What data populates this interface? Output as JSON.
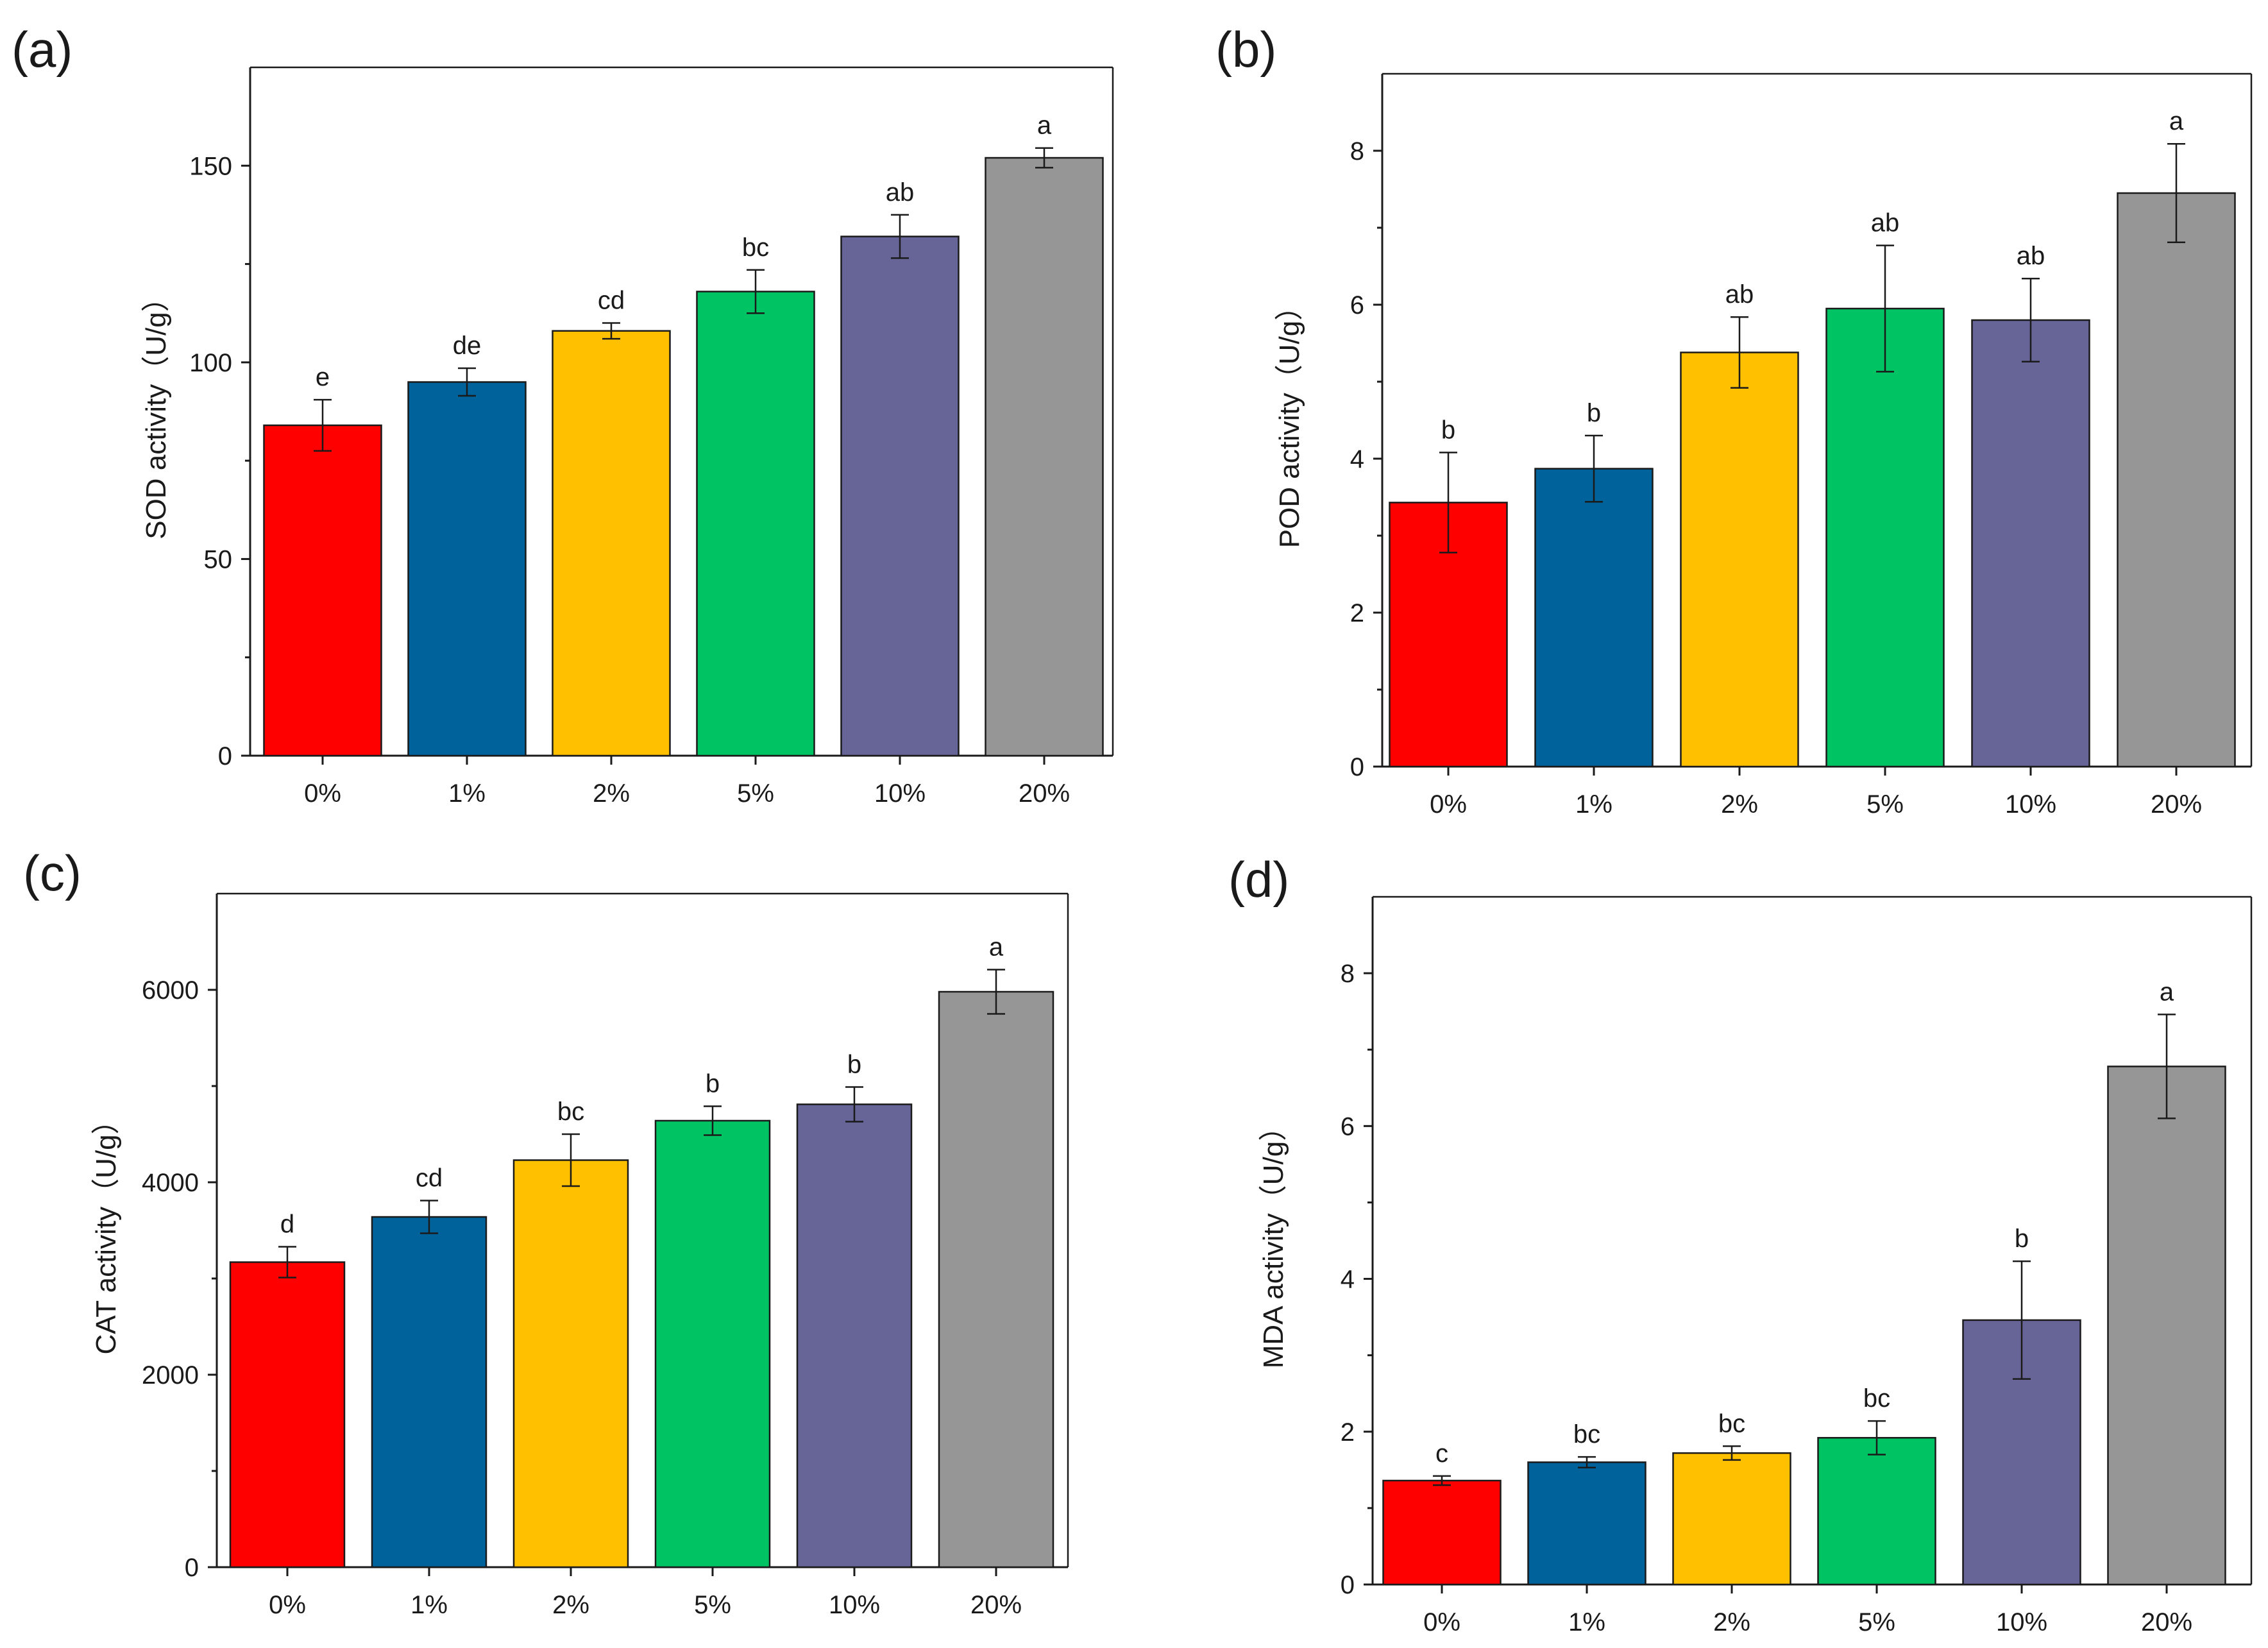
{
  "chart_data": [
    {
      "type": "bar",
      "panel_label": "(a)",
      "categories": [
        "0%",
        "1%",
        "2%",
        "5%",
        "10%",
        "20%"
      ],
      "values": [
        84,
        95,
        108,
        118,
        132,
        152
      ],
      "errors": [
        6.5,
        3.5,
        2,
        5.5,
        5.5,
        2.5
      ],
      "significance": [
        "e",
        "de",
        "cd",
        "bc",
        "ab",
        "a"
      ],
      "ylabel": "SOD activity（U/g）",
      "xlabel": "",
      "ylim": [
        0,
        175
      ],
      "yticks": [
        0,
        50,
        100,
        150
      ],
      "ytick_labels": [
        "0",
        "50",
        "100",
        "150"
      ]
    },
    {
      "type": "bar",
      "panel_label": "(b)",
      "categories": [
        "0%",
        "1%",
        "2%",
        "5%",
        "10%",
        "20%"
      ],
      "values": [
        3.43,
        3.87,
        5.38,
        5.95,
        5.8,
        7.45
      ],
      "errors": [
        0.65,
        0.43,
        0.46,
        0.82,
        0.54,
        0.64
      ],
      "significance": [
        "b",
        "b",
        "ab",
        "ab",
        "ab",
        "a"
      ],
      "ylabel": "POD activity（U/g）",
      "xlabel": "",
      "ylim": [
        0,
        9
      ],
      "yticks": [
        0,
        2,
        4,
        6,
        8
      ],
      "ytick_labels": [
        "0",
        "2",
        "4",
        "6",
        "8"
      ]
    },
    {
      "type": "bar",
      "panel_label": "(c)",
      "categories": [
        "0%",
        "1%",
        "2%",
        "5%",
        "10%",
        "20%"
      ],
      "values": [
        3170,
        3640,
        4230,
        4640,
        4810,
        5980
      ],
      "errors": [
        160,
        170,
        270,
        150,
        180,
        230
      ],
      "significance": [
        "d",
        "cd",
        "bc",
        "b",
        "b",
        "a"
      ],
      "ylabel": "CAT activity（U/g）",
      "xlabel": "",
      "ylim": [
        0,
        7000
      ],
      "yticks": [
        0,
        2000,
        4000,
        6000
      ],
      "ytick_labels": [
        "0",
        "2000",
        "4000",
        "6000"
      ]
    },
    {
      "type": "bar",
      "panel_label": "(d)",
      "categories": [
        "0%",
        "1%",
        "2%",
        "5%",
        "10%",
        "20%"
      ],
      "values": [
        1.36,
        1.6,
        1.72,
        1.92,
        3.46,
        6.78
      ],
      "errors": [
        0.06,
        0.07,
        0.09,
        0.22,
        0.77,
        0.68
      ],
      "significance": [
        "c",
        "bc",
        "bc",
        "bc",
        "b",
        "a"
      ],
      "ylabel": "MDA activity（U/g）",
      "xlabel": "",
      "ylim": [
        0,
        9
      ],
      "yticks": [
        0,
        2,
        4,
        6,
        8
      ],
      "ytick_labels": [
        "0",
        "2",
        "4",
        "6",
        "8"
      ]
    }
  ],
  "colors": {
    "bars": [
      "#ff0000",
      "#00629b",
      "#ffc000",
      "#00c464",
      "#676498",
      "#969696"
    ],
    "axis": "#1a1a1a",
    "background": "#ffffff"
  }
}
